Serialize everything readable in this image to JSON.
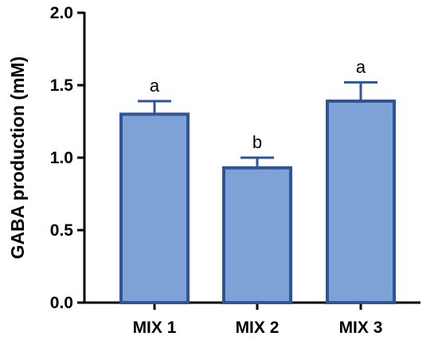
{
  "chart_data": {
    "type": "bar",
    "title": "",
    "xlabel": "",
    "ylabel": "GABA production (mM)",
    "categories": [
      "MIX 1",
      "MIX 2",
      "MIX 3"
    ],
    "values": [
      1.3,
      0.93,
      1.39
    ],
    "error_upper": [
      0.09,
      0.07,
      0.13
    ],
    "significance_letters": [
      "a",
      "b",
      "a"
    ],
    "ylim": [
      0,
      2.0
    ],
    "y_ticks": [
      0.0,
      0.5,
      1.0,
      1.5,
      2.0
    ],
    "y_tick_labels": [
      "0.0",
      "0.5",
      "1.0",
      "1.5",
      "2.0"
    ],
    "grid": false,
    "colors": {
      "bar_fill": "#7ea2d6",
      "bar_edge": "#2f5597",
      "error_bar": "#2f5597",
      "axis": "#000000"
    }
  }
}
